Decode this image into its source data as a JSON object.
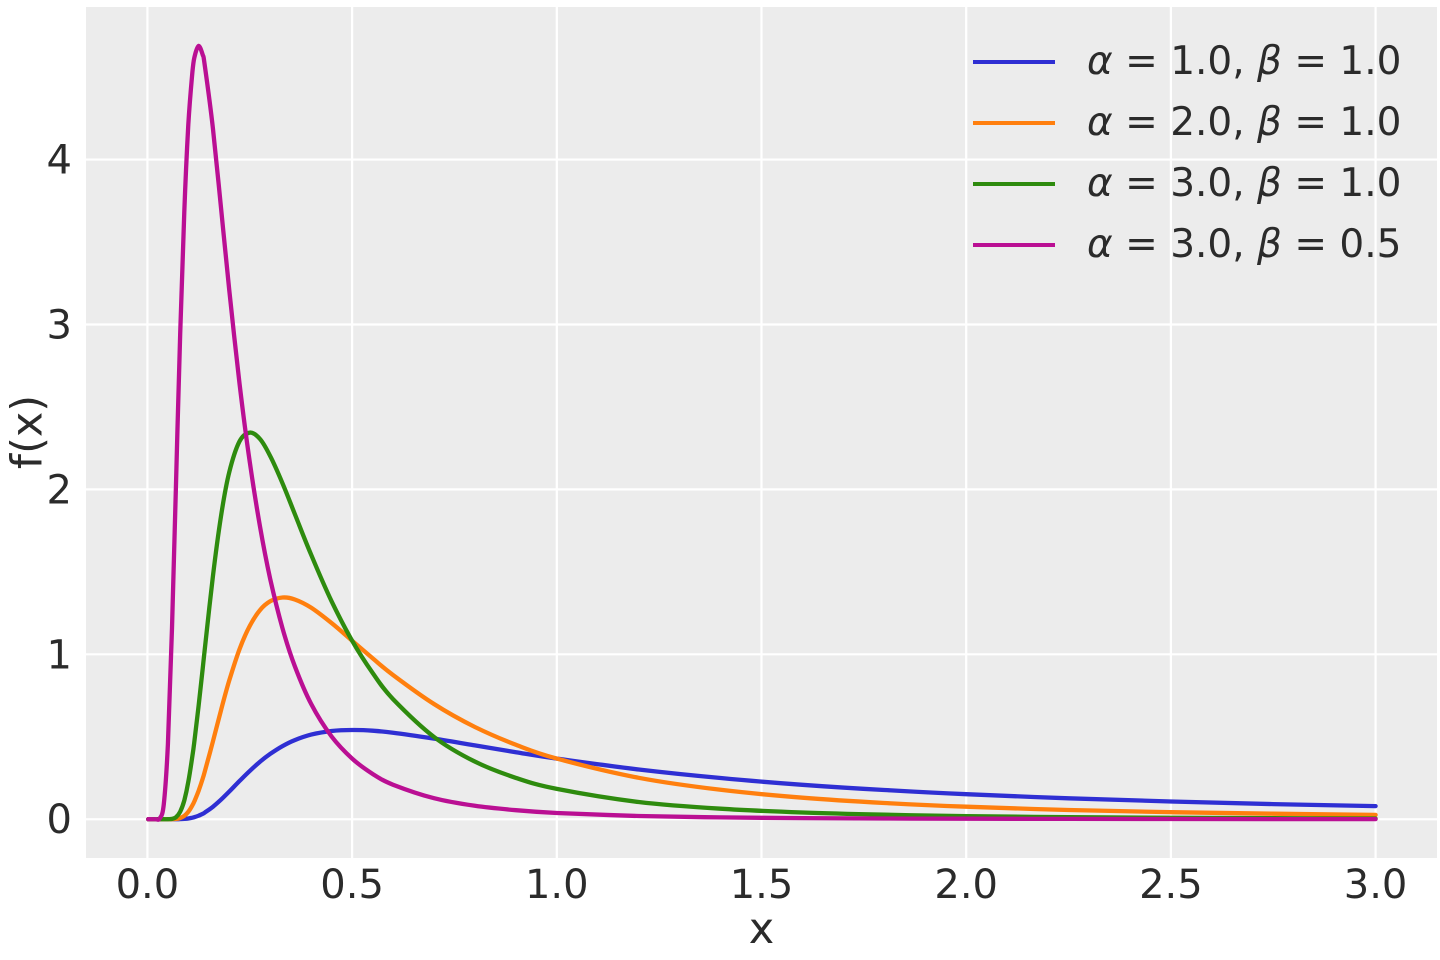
{
  "figure": {
    "background": "#ffffff",
    "plot_background": "#ececec",
    "grid_color": "#ffffff",
    "text_color": "#2b2b2b"
  },
  "legend": {
    "alpha_symbol": "α",
    "beta_symbol": "β",
    "equals": " = ",
    "comma": ", "
  },
  "chart_data": {
    "type": "line",
    "title": "",
    "xlabel": "x",
    "ylabel": "f(x)",
    "xlim": [
      -0.15,
      3.15
    ],
    "ylim": [
      -0.235,
      4.925
    ],
    "xticks": [
      0.0,
      0.5,
      1.0,
      1.5,
      2.0,
      2.5,
      3.0
    ],
    "xtick_labels": [
      "0.0",
      "0.5",
      "1.0",
      "1.5",
      "2.0",
      "2.5",
      "3.0"
    ],
    "yticks": [
      0,
      1,
      2,
      3,
      4
    ],
    "ytick_labels": [
      "0",
      "1",
      "2",
      "3",
      "4"
    ],
    "grid": true,
    "legend_position": "upper right",
    "legend_frame": false,
    "line_width": 4.3,
    "x": [
      0.002,
      0.01,
      0.02,
      0.03,
      0.04,
      0.05,
      0.06,
      0.07,
      0.08,
      0.09,
      0.1,
      0.11,
      0.115,
      0.125,
      0.135,
      0.14,
      0.16,
      0.18,
      0.2,
      0.225,
      0.25,
      0.275,
      0.3,
      0.33,
      0.36,
      0.4,
      0.45,
      0.5,
      0.55,
      0.6,
      0.7,
      0.8,
      0.9,
      1.0,
      1.2,
      1.4,
      1.6,
      1.8,
      2.0,
      2.25,
      2.5,
      2.75,
      3.0
    ],
    "series": [
      {
        "label": "α = 1.0, β = 1.0",
        "alpha": "1.0",
        "beta": "1.0",
        "color": "#2f2fd3",
        "values": [
          0,
          0,
          0,
          0,
          0,
          0,
          0,
          0.0001,
          0.0006,
          0.0018,
          0.0045,
          0.0093,
          0.0127,
          0.0215,
          0.0333,
          0.0403,
          0.0754,
          0.1192,
          0.1684,
          0.232,
          0.293,
          0.3488,
          0.3964,
          0.4437,
          0.4798,
          0.513,
          0.5352,
          0.5413,
          0.5369,
          0.5247,
          0.4891,
          0.4477,
          0.4064,
          0.3679,
          0.3018,
          0.2498,
          0.2091,
          0.1771,
          0.1516,
          0.1267,
          0.1073,
          0.0919,
          0.0796
        ]
      },
      {
        "label": "α = 2.0, β = 1.0",
        "alpha": "2.0",
        "beta": "1.0",
        "color": "#ff7f0e",
        "values": [
          0,
          0,
          0,
          0,
          0,
          0,
          0.0003,
          0.0018,
          0.0073,
          0.0205,
          0.0454,
          0.0845,
          0.11,
          0.1718,
          0.2466,
          0.2875,
          0.4713,
          0.6629,
          0.8422,
          1.0309,
          1.1722,
          1.2682,
          1.3213,
          1.3445,
          1.3327,
          1.2826,
          1.1892,
          1.0827,
          0.9761,
          0.8744,
          0.6987,
          0.5596,
          0.4515,
          0.3679,
          0.2515,
          0.1784,
          0.1307,
          0.0984,
          0.0758,
          0.0563,
          0.0429,
          0.0334,
          0.0265
        ]
      },
      {
        "label": "α = 3.0, β = 1.0",
        "alpha": "3.0",
        "beta": "1.0",
        "color": "#2e8b0e",
        "values": [
          0,
          0,
          0,
          0,
          0,
          0.0002,
          0.0022,
          0.0129,
          0.0455,
          0.1137,
          0.2269,
          0.3841,
          0.4782,
          0.687,
          0.9133,
          1.0267,
          1.4725,
          1.8414,
          2.1056,
          2.2909,
          2.3442,
          2.3055,
          2.2021,
          2.0372,
          1.851,
          1.6032,
          1.3214,
          1.0827,
          0.8874,
          0.7287,
          0.499,
          0.3497,
          0.2509,
          0.1839,
          0.1048,
          0.0637,
          0.0408,
          0.0273,
          0.019,
          0.0125,
          0.0086,
          0.0061,
          0.0044
        ]
      },
      {
        "label": "α = 3.0, β = 0.5",
        "alpha": "3.0",
        "beta": "0.5",
        "color": "#ba0f93",
        "values": [
          0,
          0,
          0,
          0.0045,
          0.091,
          0.454,
          1.159,
          2.054,
          2.946,
          3.683,
          4.211,
          4.531,
          4.622,
          4.689,
          4.635,
          4.574,
          4.19,
          3.702,
          3.206,
          2.643,
          2.165,
          1.775,
          1.457,
          1.158,
          0.928,
          0.699,
          0.502,
          0.368,
          0.2752,
          0.2096,
          0.1274,
          0.0817,
          0.0547,
          0.0379,
          0.0199,
          0.0114,
          0.007,
          0.0045,
          0.003,
          0.002,
          0.0013,
          0.0009,
          0.0007
        ]
      }
    ]
  }
}
